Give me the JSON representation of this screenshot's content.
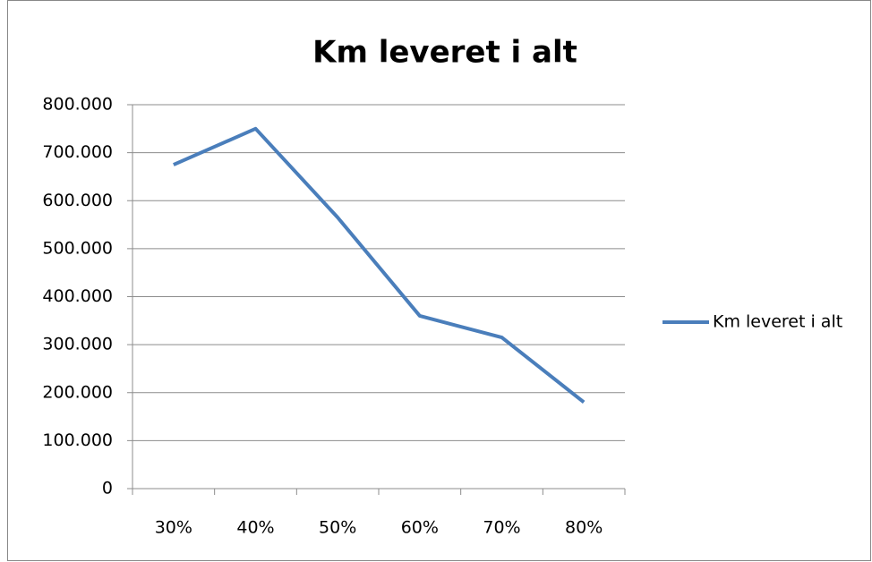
{
  "chart_data": {
    "type": "line",
    "title": "Km leveret i alt",
    "categories": [
      "30%",
      "40%",
      "50%",
      "60%",
      "70%",
      "80%"
    ],
    "series": [
      {
        "name": "Km leveret i alt",
        "color": "#4a7ebb",
        "values": [
          675000,
          750000,
          565000,
          360000,
          315000,
          180000
        ]
      }
    ],
    "ylim": [
      0,
      800000
    ],
    "yticks": [
      0,
      {
        "value": 100000,
        "label": "100.000"
      },
      {
        "value": 200000,
        "label": "200.000"
      },
      {
        "value": 300000,
        "label": "300.000"
      },
      {
        "value": 400000,
        "label": "400.000"
      },
      {
        "value": 500000,
        "label": "500.000"
      },
      {
        "value": 600000,
        "label": "600.000"
      },
      {
        "value": 700000,
        "label": "700.000"
      },
      {
        "value": 800000,
        "label": "800.000"
      }
    ],
    "grid": true,
    "legend": "right"
  }
}
